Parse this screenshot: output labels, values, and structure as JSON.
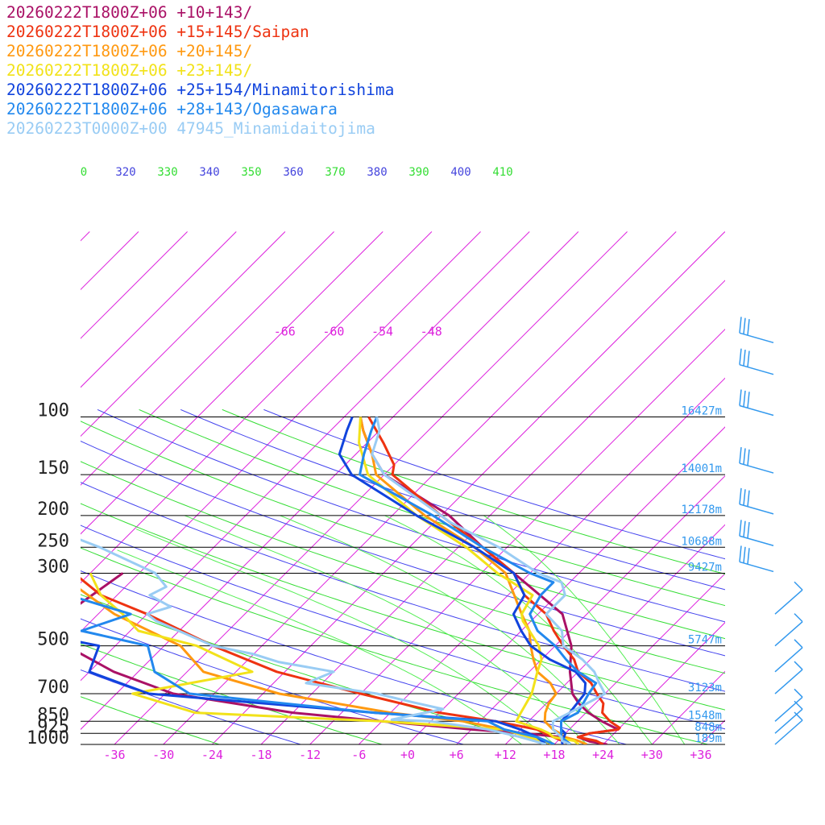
{
  "chart_data": {
    "type": "line",
    "subtype": "skew-T log-P sounding",
    "pressure_levels": [
      {
        "p": 100,
        "height": "16427m"
      },
      {
        "p": 150,
        "height": "14001m"
      },
      {
        "p": 200,
        "height": "12178m"
      },
      {
        "p": 250,
        "height": "10688m"
      },
      {
        "p": 300,
        "height": "9427m"
      },
      {
        "p": 500,
        "height": "5747m"
      },
      {
        "p": 700,
        "height": "3123m"
      },
      {
        "p": 850,
        "height": "1548m"
      },
      {
        "p": 925,
        "height": "848m"
      },
      {
        "p": 1000,
        "height": "189m"
      }
    ],
    "x_ticks": [
      {
        "t": -36,
        "label": "-36"
      },
      {
        "t": -30,
        "label": "-30"
      },
      {
        "t": -24,
        "label": "-24"
      },
      {
        "t": -18,
        "label": "-18"
      },
      {
        "t": -12,
        "label": "-12"
      },
      {
        "t": -6,
        "label": "-6"
      },
      {
        "t": 0,
        "label": "+0"
      },
      {
        "t": 6,
        "label": "+6"
      },
      {
        "t": 12,
        "label": "+12"
      },
      {
        "t": 18,
        "label": "+18"
      },
      {
        "t": 24,
        "label": "+24"
      },
      {
        "t": 30,
        "label": "+30"
      },
      {
        "t": 36,
        "label": "+36"
      }
    ],
    "upper_temp_labels": [
      {
        "t": -66,
        "label": "-66"
      },
      {
        "t": -60,
        "label": "-60"
      },
      {
        "t": -54,
        "label": "-54"
      },
      {
        "t": -48,
        "label": "-48"
      }
    ],
    "theta_labels": [
      {
        "text": "0",
        "color": "#33dd33"
      },
      {
        "text": "320",
        "color": "#4444dd"
      },
      {
        "text": "330",
        "color": "#33dd33"
      },
      {
        "text": "340",
        "color": "#4444dd"
      },
      {
        "text": "350",
        "color": "#33dd33"
      },
      {
        "text": "360",
        "color": "#4444dd"
      },
      {
        "text": "370",
        "color": "#33dd33"
      },
      {
        "text": "380",
        "color": "#4444dd"
      },
      {
        "text": "390",
        "color": "#33dd33"
      },
      {
        "text": "400",
        "color": "#4444dd"
      },
      {
        "text": "410",
        "color": "#33dd33"
      }
    ],
    "colors": {
      "isotherm": "#dd22dd",
      "dry_adiabat_a": "#33dd33",
      "dry_adiabat_b": "#4444ee",
      "moist_adiabat": "#55ee55",
      "pressure_line": "#000000",
      "height_label": "#3399ee",
      "wind_barb": "#3399ee"
    },
    "series": [
      {
        "name": "20260222T1800Z+06 +10+143/",
        "color": "#aa1166",
        "temp": [
          [
            1000,
            24.5
          ],
          [
            980,
            22
          ],
          [
            950,
            20
          ],
          [
            925,
            21
          ],
          [
            900,
            24
          ],
          [
            850,
            21
          ],
          [
            800,
            18.3
          ],
          [
            750,
            16
          ],
          [
            700,
            14
          ],
          [
            600,
            11
          ],
          [
            500,
            8
          ],
          [
            400,
            3
          ],
          [
            300,
            -8
          ],
          [
            250,
            -15
          ],
          [
            200,
            -23
          ],
          [
            150,
            -36
          ],
          [
            130,
            -40
          ],
          [
            110,
            -44
          ],
          [
            100,
            -46
          ]
        ],
        "dewp": [
          [
            1000,
            20
          ],
          [
            975,
            19
          ],
          [
            950,
            18
          ],
          [
            925,
            13
          ],
          [
            900,
            6
          ],
          [
            850,
            -6
          ],
          [
            800,
            -18
          ],
          [
            700,
            -35
          ],
          [
            600,
            -45
          ],
          [
            500,
            -54
          ],
          [
            450,
            -60
          ],
          [
            400,
            -58
          ],
          [
            300,
            -56
          ]
        ]
      },
      {
        "name": "20260222T1800Z+06 +15+145/Saipan",
        "color": "#ee3311",
        "temp": [
          [
            1000,
            24
          ],
          [
            975,
            22.7
          ],
          [
            950,
            20
          ],
          [
            925,
            21
          ],
          [
            900,
            24
          ],
          [
            890,
            24
          ],
          [
            870,
            23
          ],
          [
            850,
            22
          ],
          [
            800,
            20
          ],
          [
            750,
            19
          ],
          [
            700,
            17
          ],
          [
            650,
            15
          ],
          [
            600,
            12
          ],
          [
            550,
            10
          ],
          [
            500,
            7
          ],
          [
            450,
            4
          ],
          [
            400,
            1
          ],
          [
            350,
            -4
          ],
          [
            300,
            -8
          ],
          [
            250,
            -15
          ],
          [
            200,
            -24
          ],
          [
            150,
            -35
          ],
          [
            140,
            -36
          ],
          [
            120,
            -40
          ],
          [
            100,
            -45
          ]
        ],
        "dewp": [
          [
            1000,
            20
          ],
          [
            950,
            17
          ],
          [
            900,
            14
          ],
          [
            850,
            8
          ],
          [
            800,
            0
          ],
          [
            700,
            -12
          ],
          [
            600,
            -25
          ],
          [
            500,
            -36
          ],
          [
            400,
            -48
          ],
          [
            350,
            -56
          ],
          [
            300,
            -62
          ]
        ]
      },
      {
        "name": "20260222T1800Z+06 +20+145/",
        "color": "#ff9911",
        "temp": [
          [
            1000,
            22
          ],
          [
            975,
            20.5
          ],
          [
            950,
            18.4
          ],
          [
            925,
            17.3
          ],
          [
            900,
            16
          ],
          [
            850,
            14
          ],
          [
            800,
            13
          ],
          [
            750,
            12.3
          ],
          [
            700,
            12
          ],
          [
            650,
            10
          ],
          [
            600,
            7
          ],
          [
            550,
            5
          ],
          [
            500,
            3
          ],
          [
            450,
            1
          ],
          [
            400,
            -2
          ],
          [
            300,
            -9
          ],
          [
            250,
            -16
          ],
          [
            200,
            -26
          ],
          [
            150,
            -37
          ],
          [
            130,
            -40
          ],
          [
            110,
            -44
          ],
          [
            100,
            -46
          ]
        ],
        "dewp": [
          [
            1000,
            18
          ],
          [
            950,
            15
          ],
          [
            900,
            10
          ],
          [
            850,
            4
          ],
          [
            800,
            -6
          ],
          [
            700,
            -22
          ],
          [
            600,
            -34
          ],
          [
            500,
            -40
          ],
          [
            400,
            -52
          ],
          [
            300,
            -64
          ]
        ]
      },
      {
        "name": "20260222T1800Z+06 +23+145/",
        "color": "#f2e21a",
        "temp": [
          [
            1000,
            21
          ],
          [
            975,
            20
          ],
          [
            950,
            17
          ],
          [
            925,
            16
          ],
          [
            900,
            14.5
          ],
          [
            850,
            10.5
          ],
          [
            800,
            10
          ],
          [
            700,
            9
          ],
          [
            600,
            7
          ],
          [
            550,
            6
          ],
          [
            500,
            4
          ],
          [
            450,
            1
          ],
          [
            420,
            -1
          ],
          [
            400,
            -2
          ],
          [
            350,
            -3
          ],
          [
            300,
            -10
          ],
          [
            250,
            -17
          ],
          [
            200,
            -27
          ],
          [
            150,
            -38
          ],
          [
            120,
            -43
          ],
          [
            100,
            -46
          ]
        ],
        "dewp": [
          [
            1000,
            18
          ],
          [
            950,
            14
          ],
          [
            900,
            10
          ],
          [
            850,
            -6
          ],
          [
            800,
            -30
          ],
          [
            700,
            -40
          ],
          [
            600,
            -28
          ],
          [
            500,
            -38
          ],
          [
            450,
            -47
          ],
          [
            400,
            -51
          ],
          [
            350,
            -56
          ],
          [
            300,
            -60
          ]
        ]
      },
      {
        "name": "20260222T1800Z+06 +25+154/Minamitorishima",
        "color": "#1144dd",
        "temp": [
          [
            1000,
            19
          ],
          [
            975,
            18.5
          ],
          [
            950,
            18.3
          ],
          [
            925,
            18
          ],
          [
            900,
            17
          ],
          [
            850,
            16
          ],
          [
            800,
            16
          ],
          [
            700,
            15.5
          ],
          [
            650,
            14.3
          ],
          [
            600,
            11.7
          ],
          [
            550,
            7
          ],
          [
            500,
            3
          ],
          [
            450,
            0
          ],
          [
            400,
            -3
          ],
          [
            350,
            -4
          ],
          [
            300,
            -8
          ],
          [
            250,
            -16
          ],
          [
            200,
            -27
          ],
          [
            150,
            -40
          ],
          [
            130,
            -44
          ],
          [
            110,
            -46
          ],
          [
            100,
            -47
          ]
        ],
        "dewp": [
          [
            1000,
            17
          ],
          [
            950,
            15
          ],
          [
            900,
            12
          ],
          [
            850,
            8
          ],
          [
            800,
            -8
          ],
          [
            700,
            -38
          ],
          [
            600,
            -48
          ],
          [
            500,
            -50
          ],
          [
            450,
            -61
          ],
          [
            400,
            -60
          ],
          [
            300,
            -75
          ]
        ]
      },
      {
        "name": "20260222T1800Z+06 +28+143/Ogasawara",
        "color": "#2288ee",
        "temp": [
          [
            1000,
            20
          ],
          [
            975,
            19
          ],
          [
            950,
            18
          ],
          [
            925,
            17.5
          ],
          [
            900,
            17
          ],
          [
            850,
            16
          ],
          [
            800,
            17
          ],
          [
            700,
            16
          ],
          [
            650,
            15.6
          ],
          [
            600,
            12
          ],
          [
            550,
            9
          ],
          [
            500,
            6
          ],
          [
            450,
            2
          ],
          [
            400,
            -1
          ],
          [
            350,
            -2
          ],
          [
            320,
            -2
          ],
          [
            300,
            -6
          ],
          [
            250,
            -15
          ],
          [
            200,
            -25
          ],
          [
            150,
            -39
          ],
          [
            130,
            -41
          ],
          [
            110,
            -43
          ],
          [
            100,
            -44
          ]
        ],
        "dewp": [
          [
            1000,
            18
          ],
          [
            950,
            15
          ],
          [
            900,
            10
          ],
          [
            850,
            7
          ],
          [
            800,
            -8
          ],
          [
            700,
            -33
          ],
          [
            600,
            -40
          ],
          [
            500,
            -44
          ],
          [
            450,
            -54
          ],
          [
            400,
            -50
          ],
          [
            350,
            -60
          ],
          [
            300,
            -74
          ]
        ]
      },
      {
        "name": "20260223T0000Z+00 47945_Minamidaitojima",
        "color": "#99ccf4",
        "temp": [
          [
            1000,
            20
          ],
          [
            975,
            18.5
          ],
          [
            950,
            18
          ],
          [
            925,
            17
          ],
          [
            900,
            16
          ],
          [
            850,
            15
          ],
          [
            800,
            16
          ],
          [
            700,
            18
          ],
          [
            650,
            16
          ],
          [
            600,
            14
          ],
          [
            550,
            11
          ],
          [
            500,
            7
          ],
          [
            450,
            5
          ],
          [
            400,
            1
          ],
          [
            350,
            1
          ],
          [
            320,
            -1
          ],
          [
            300,
            -5
          ],
          [
            250,
            -13
          ],
          [
            210,
            -22
          ],
          [
            200,
            -24
          ],
          [
            150,
            -36
          ],
          [
            130,
            -40
          ],
          [
            110,
            -42
          ],
          [
            100,
            -44
          ]
        ],
        "dewp": [
          [
            1000,
            17
          ],
          [
            950,
            13
          ],
          [
            900,
            8
          ],
          [
            850,
            0
          ],
          [
            840,
            -5
          ],
          [
            780,
            0
          ],
          [
            740,
            -5
          ],
          [
            700,
            -10
          ],
          [
            650,
            -20
          ],
          [
            600,
            -18
          ],
          [
            560,
            -26
          ],
          [
            530,
            -30
          ],
          [
            500,
            -36
          ],
          [
            420,
            -46
          ],
          [
            400,
            -48
          ],
          [
            380,
            -46
          ],
          [
            350,
            -50
          ],
          [
            330,
            -49
          ],
          [
            300,
            -52
          ],
          [
            250,
            -62
          ],
          [
            200,
            -76
          ],
          [
            150,
            -80
          ],
          [
            120,
            -83
          ],
          [
            100,
            -83
          ]
        ]
      }
    ],
    "wind_barbs": [
      {
        "p": 60,
        "kind": "barb"
      },
      {
        "p": 75,
        "kind": "barb"
      },
      {
        "p": 100,
        "kind": "barb"
      },
      {
        "p": 150,
        "kind": "barb"
      },
      {
        "p": 200,
        "kind": "barb"
      },
      {
        "p": 250,
        "kind": "barb"
      },
      {
        "p": 300,
        "kind": "barb"
      },
      {
        "p": 400,
        "kind": "barb"
      },
      {
        "p": 500,
        "kind": "barb"
      },
      {
        "p": 600,
        "kind": "barb"
      },
      {
        "p": 700,
        "kind": "barb"
      },
      {
        "p": 850,
        "kind": "barb"
      },
      {
        "p": 925,
        "kind": "barb"
      },
      {
        "p": 1000,
        "kind": "barb"
      }
    ]
  }
}
